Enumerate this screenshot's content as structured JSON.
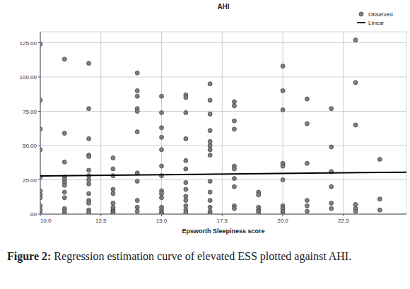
{
  "chart_data": {
    "type": "scatter",
    "title": "AHI",
    "x_label": "Epsworth Sleepiness score",
    "xlim": [
      10,
      25.1
    ],
    "ylim": [
      0,
      133
    ],
    "xticks": [
      {
        "value": 10,
        "label": "10.0"
      },
      12.5,
      {
        "value": 15,
        "label": "15.0"
      },
      17.5,
      {
        "value": 20,
        "label": "20.0"
      },
      22.5
    ],
    "yticks": [
      {
        "value": 0,
        "label": ".00"
      },
      {
        "value": 25,
        "label": "25.00"
      },
      {
        "value": 50,
        "label": "50.00"
      },
      {
        "value": 75,
        "label": "75.00"
      },
      {
        "value": 100,
        "label": "100.00"
      },
      {
        "value": 125,
        "label": "125.00"
      }
    ],
    "grid": true,
    "legend": "top-right",
    "series": [
      {
        "name": "Observed",
        "type": "scatter",
        "marker": "circle",
        "color": "#7f7f7f",
        "x": [
          10,
          10,
          10,
          10,
          10,
          10,
          10,
          10,
          10,
          10,
          10,
          11,
          11,
          11,
          11,
          11,
          11,
          11,
          11,
          11,
          11,
          11,
          11,
          12,
          12,
          12,
          12,
          12,
          12,
          12,
          12,
          12,
          12,
          12,
          12,
          12,
          12,
          13,
          13,
          13,
          13,
          13,
          13,
          13,
          13,
          13,
          13,
          13,
          14,
          14,
          14,
          14,
          14,
          14,
          14,
          14,
          14,
          14,
          14,
          15,
          15,
          15,
          15,
          15,
          15,
          15,
          15,
          15,
          15,
          15,
          15,
          15,
          15,
          16,
          16,
          16,
          16,
          16,
          16,
          16,
          16,
          16,
          16,
          16,
          16,
          16,
          17,
          17,
          17,
          17,
          17,
          17,
          17,
          17,
          17,
          17,
          17,
          17,
          17,
          17,
          18,
          18,
          18,
          18,
          18,
          18,
          18,
          18,
          18,
          18,
          19,
          19,
          19,
          19,
          19,
          19,
          20,
          20,
          20,
          20,
          20,
          20,
          20,
          20,
          20,
          20,
          21,
          21,
          21,
          21,
          21,
          21,
          22,
          22,
          22,
          22,
          22,
          22,
          23,
          23,
          23,
          23,
          23,
          23,
          24,
          24,
          24
        ],
        "values": [
          124,
          83,
          62,
          47,
          27,
          17,
          14,
          12,
          6,
          3,
          0,
          113,
          59,
          38,
          27,
          25,
          23,
          21,
          16,
          12,
          4,
          2,
          0,
          110,
          77,
          55,
          43,
          42,
          32,
          28,
          25,
          22,
          15,
          10,
          8,
          3,
          1,
          41,
          33,
          28,
          18,
          15,
          8,
          5,
          3,
          2,
          1,
          0,
          103,
          90,
          86,
          77,
          75,
          60,
          30,
          24,
          10,
          5,
          2,
          86,
          74,
          63,
          56,
          47,
          35,
          28,
          17,
          15,
          12,
          5,
          3,
          1,
          0,
          87,
          85,
          74,
          55,
          39,
          33,
          23,
          18,
          13,
          10,
          6,
          3,
          1,
          95,
          83,
          73,
          61,
          53,
          50,
          47,
          43,
          24,
          16,
          10,
          5,
          2,
          0,
          82,
          79,
          68,
          62,
          35,
          33,
          26,
          20,
          6,
          4,
          16,
          14,
          5,
          3,
          2,
          0,
          108,
          90,
          76,
          37,
          35,
          25,
          6,
          4,
          2,
          0,
          84,
          66,
          37,
          10,
          6,
          2,
          77,
          49,
          31,
          20,
          8,
          4,
          127,
          96,
          65,
          7,
          4,
          2,
          40,
          11,
          3
        ]
      },
      {
        "name": "Linear",
        "type": "line",
        "line_style": "solid",
        "color": "#000000",
        "x": [
          10,
          25.1
        ],
        "values": [
          27.8,
          30.6
        ]
      }
    ]
  },
  "caption": {
    "label": "Figure 2:",
    "text": "Regression estimation curve of elevated ESS plotted against AHI."
  }
}
